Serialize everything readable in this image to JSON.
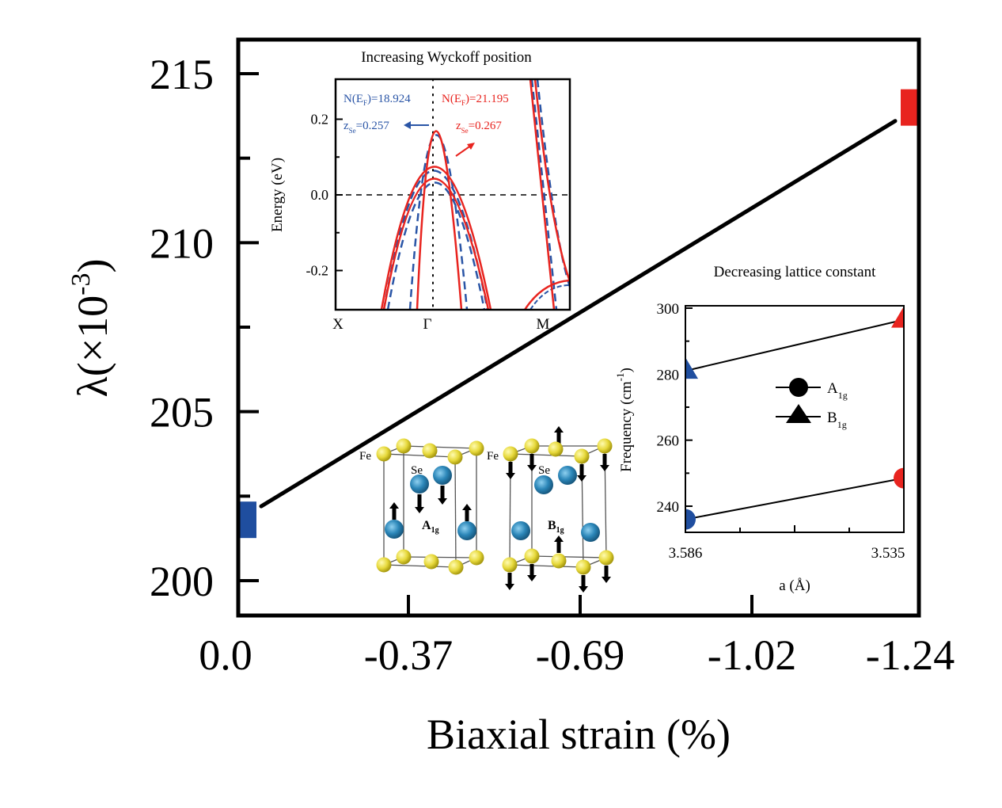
{
  "chart_data": [
    {
      "id": "main",
      "type": "line",
      "title": "",
      "xlabel": "Biaxial strain (%)",
      "ylabel": "λ(×10⁻³)",
      "ylabel_parts": {
        "prefix": "λ(×10",
        "sup": "-3",
        "suffix": ")"
      },
      "x_tick_labels": [
        "0.0",
        "-0.37",
        "-0.69",
        "-1.02",
        "-1.24"
      ],
      "y_ticks": [
        200,
        205,
        210,
        215
      ],
      "y_minor_ticks": [
        202.5,
        207.5,
        212.5
      ],
      "ylim": [
        199.0,
        216.0
      ],
      "grid": false,
      "markers": [
        {
          "name": "unstrained",
          "x_label": "0.0",
          "x_index": 0,
          "value": 201.8,
          "shape": "square",
          "color": "#1f4e9f"
        },
        {
          "name": "max-strain",
          "x_label": "-1.24",
          "x_index": 4,
          "value": 214.0,
          "shape": "square",
          "color": "#e8241f"
        }
      ],
      "trend_line": {
        "from": {
          "x_index": 0.08,
          "value": 202.2
        },
        "to": {
          "x_index": 3.9,
          "value": 213.6
        },
        "color": "#000000"
      }
    },
    {
      "id": "inset-band",
      "type": "line",
      "title": "Increasing Wyckoff position",
      "ylabel": "Energy (eV)",
      "x_tick_labels": [
        "X",
        "Γ",
        "M"
      ],
      "y_tick_labels": [
        "0.2",
        "0.0",
        "-0.2"
      ],
      "y_ticks": [
        0.2,
        0.0,
        -0.2
      ],
      "y_minor_ticks": [
        0.1,
        -0.1
      ],
      "ylim": [
        -0.3,
        0.3
      ],
      "fermi_level": 0.0,
      "annotations": [
        {
          "text": "N(E",
          "sub": "F",
          "tail": ")=18.924",
          "color": "#2a55a6"
        },
        {
          "text": "z",
          "sub": "Se",
          "tail": "=0.257",
          "color": "#2a55a6"
        },
        {
          "text": "N(E",
          "sub": "F",
          "tail": ")=21.195",
          "color": "#e8241f"
        },
        {
          "text": "z",
          "sub": "Se",
          "tail": "=0.267",
          "color": "#e8241f"
        }
      ],
      "series": [
        {
          "name": "zSe=0.257",
          "style": "dashed",
          "color": "#2a55a6"
        },
        {
          "name": "zSe=0.267",
          "style": "solid",
          "color": "#e8241f"
        }
      ]
    },
    {
      "id": "inset-phonon",
      "type": "line",
      "title": "Decreasing lattice constant",
      "xlabel": "a (Å)",
      "ylabel": "Frequency (cm⁻¹)",
      "ylabel_parts": {
        "prefix": "Frequency (cm",
        "sup": "-1",
        "suffix": ")"
      },
      "x_tick_labels": [
        "3.586",
        "3.535"
      ],
      "x": [
        3.586,
        3.535
      ],
      "y_ticks": [
        240,
        260,
        280,
        300
      ],
      "y_minor_ticks": [
        250,
        270,
        290
      ],
      "ylim": [
        231,
        300.5
      ],
      "legend": {
        "position": "center",
        "entries": [
          {
            "label": "A",
            "sub": "1g",
            "marker": "circle"
          },
          {
            "label": "B",
            "sub": "1g",
            "marker": "triangle"
          }
        ]
      },
      "series": [
        {
          "name": "A1g",
          "marker": "circle",
          "values": [
            236.0,
            248.5
          ],
          "colors": [
            "#1f4e9f",
            "#e8241f"
          ]
        },
        {
          "name": "B1g",
          "marker": "triangle",
          "values": [
            281.0,
            296.5
          ],
          "colors": [
            "#1f4e9f",
            "#e8241f"
          ]
        }
      ]
    }
  ],
  "structure": {
    "fe_label": "Fe",
    "se_label": "Se",
    "modes": [
      {
        "label": "A",
        "sub": "1g"
      },
      {
        "label": "B",
        "sub": "1g"
      }
    ],
    "colors": {
      "fe": "#e6d83a",
      "se": "#2b86b8"
    }
  }
}
